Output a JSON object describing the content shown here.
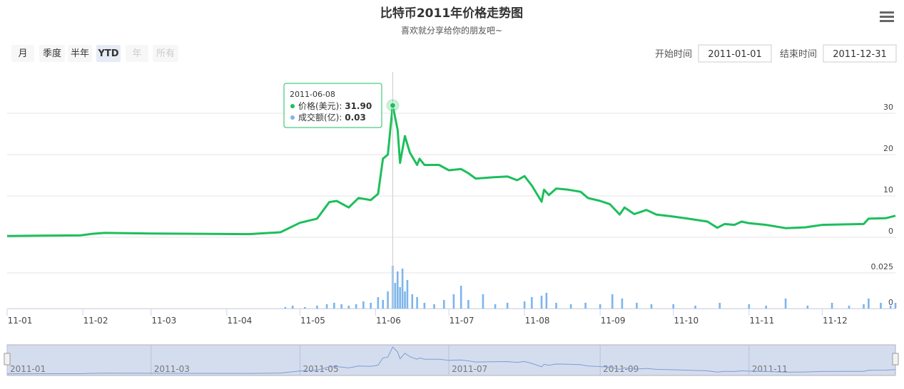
{
  "chart_data": [
    {
      "type": "line",
      "title": "比特币2011年价格走势图",
      "subtitle": "喜欢就分享给你的朋友吧~",
      "x": [
        "2011-01-01",
        "2011-01-15",
        "2011-01-31",
        "2011-02-05",
        "2011-02-10",
        "2011-03-01",
        "2011-03-20",
        "2011-04-10",
        "2011-04-23",
        "2011-05-01",
        "2011-05-08",
        "2011-05-13",
        "2011-05-16",
        "2011-05-21",
        "2011-05-25",
        "2011-05-30",
        "2011-06-02",
        "2011-06-04",
        "2011-06-06",
        "2011-06-08",
        "2011-06-10",
        "2011-06-11",
        "2011-06-13",
        "2011-06-15",
        "2011-06-18",
        "2011-06-19",
        "2011-06-21",
        "2011-06-27",
        "2011-07-01",
        "2011-07-06",
        "2011-07-09",
        "2011-07-12",
        "2011-07-19",
        "2011-07-25",
        "2011-07-29",
        "2011-08-01",
        "2011-08-04",
        "2011-08-08",
        "2011-08-09",
        "2011-08-11",
        "2011-08-14",
        "2011-08-19",
        "2011-08-24",
        "2011-08-27",
        "2011-09-01",
        "2011-09-05",
        "2011-09-09",
        "2011-09-11",
        "2011-09-15",
        "2011-09-20",
        "2011-09-24",
        "2011-10-01",
        "2011-10-07",
        "2011-10-15",
        "2011-10-19",
        "2011-10-22",
        "2011-10-26",
        "2011-10-29",
        "2011-11-01",
        "2011-11-08",
        "2011-11-16",
        "2011-11-24",
        "2011-12-01",
        "2011-12-09",
        "2011-12-18",
        "2011-12-20",
        "2011-12-27",
        "2011-12-31"
      ],
      "series": [
        {
          "name": "价格(美元)",
          "color": "#1cbf5b",
          "values": [
            0.3,
            0.4,
            0.45,
            0.85,
            1.05,
            0.9,
            0.85,
            0.75,
            1.2,
            3.5,
            4.5,
            8.5,
            8.8,
            7.2,
            9.5,
            9.0,
            10.5,
            19.0,
            20.0,
            31.9,
            26.0,
            18.0,
            24.5,
            20.5,
            17.5,
            19.0,
            17.5,
            17.5,
            16.2,
            16.5,
            15.5,
            14.2,
            14.5,
            14.7,
            13.8,
            14.8,
            12.5,
            8.6,
            11.5,
            10.2,
            11.8,
            11.5,
            11.0,
            9.5,
            8.8,
            8.0,
            5.5,
            7.2,
            5.6,
            6.6,
            5.5,
            5.0,
            4.5,
            3.8,
            2.3,
            3.2,
            3.0,
            3.8,
            3.4,
            3.0,
            2.2,
            2.4,
            3.0,
            3.1,
            3.2,
            4.5,
            4.6,
            5.2
          ]
        }
      ],
      "xlim": [
        "2011-01-01",
        "2011-12-31"
      ],
      "xticks": [
        {
          "value": "2011-01-01",
          "label": "11-01"
        },
        {
          "value": "2011-02-01",
          "label": "11-02"
        },
        {
          "value": "2011-03-01",
          "label": "11-03"
        },
        {
          "value": "2011-04-01",
          "label": "11-04"
        },
        {
          "value": "2011-05-01",
          "label": "11-05"
        },
        {
          "value": "2011-06-01",
          "label": "11-06"
        },
        {
          "value": "2011-07-01",
          "label": "11-07"
        },
        {
          "value": "2011-08-01",
          "label": "11-08"
        },
        {
          "value": "2011-09-01",
          "label": "11-09"
        },
        {
          "value": "2011-10-01",
          "label": "11-10"
        },
        {
          "value": "2011-11-01",
          "label": "11-11"
        },
        {
          "value": "2011-12-01",
          "label": "11-12"
        }
      ],
      "ylim": [
        0,
        40
      ],
      "yticks": [
        0,
        10,
        20,
        30
      ],
      "grid": true
    },
    {
      "type": "bar",
      "x": [
        "2011-04-25",
        "2011-04-28",
        "2011-05-03",
        "2011-05-08",
        "2011-05-12",
        "2011-05-15",
        "2011-05-18",
        "2011-05-21",
        "2011-05-24",
        "2011-05-27",
        "2011-05-30",
        "2011-06-02",
        "2011-06-04",
        "2011-06-06",
        "2011-06-08",
        "2011-06-09",
        "2011-06-10",
        "2011-06-11",
        "2011-06-12",
        "2011-06-13",
        "2011-06-14",
        "2011-06-16",
        "2011-06-18",
        "2011-06-21",
        "2011-06-25",
        "2011-06-29",
        "2011-07-03",
        "2011-07-06",
        "2011-07-09",
        "2011-07-15",
        "2011-07-20",
        "2011-07-25",
        "2011-08-01",
        "2011-08-04",
        "2011-08-08",
        "2011-08-10",
        "2011-08-14",
        "2011-08-20",
        "2011-08-26",
        "2011-09-01",
        "2011-09-06",
        "2011-09-10",
        "2011-09-16",
        "2011-09-22",
        "2011-10-01",
        "2011-10-10",
        "2011-10-20",
        "2011-11-01",
        "2011-11-08",
        "2011-11-16",
        "2011-11-25",
        "2011-12-05",
        "2011-12-12",
        "2011-12-18",
        "2011-12-20",
        "2011-12-25",
        "2011-12-29",
        "2011-12-31"
      ],
      "series": [
        {
          "name": "成交额(亿)",
          "color": "#7cb5ec",
          "values": [
            0.001,
            0.002,
            0.001,
            0.002,
            0.003,
            0.004,
            0.003,
            0.002,
            0.003,
            0.005,
            0.004,
            0.008,
            0.006,
            0.012,
            0.03,
            0.018,
            0.026,
            0.015,
            0.028,
            0.012,
            0.02,
            0.01,
            0.008,
            0.004,
            0.003,
            0.006,
            0.01,
            0.016,
            0.006,
            0.01,
            0.003,
            0.004,
            0.005,
            0.008,
            0.009,
            0.011,
            0.004,
            0.003,
            0.004,
            0.003,
            0.01,
            0.007,
            0.004,
            0.003,
            0.003,
            0.002,
            0.004,
            0.003,
            0.002,
            0.007,
            0.002,
            0.004,
            0.002,
            0.003,
            0.007,
            0.004,
            0.002,
            0.004
          ]
        }
      ],
      "xlim": [
        "2011-01-01",
        "2011-12-31"
      ],
      "ylim": [
        0,
        0.045
      ],
      "yticks": [
        0,
        0.025
      ]
    }
  ],
  "range_selector": {
    "buttons": [
      {
        "label": "月"
      },
      {
        "label": "季度"
      },
      {
        "label": "半年"
      },
      {
        "label": "YTD",
        "selected": true
      },
      {
        "label": "年",
        "disabled": true
      },
      {
        "label": "所有",
        "disabled": true
      }
    ]
  },
  "date_inputs": {
    "start_label": "开始时间",
    "start": "2011-01-01",
    "end_label": "结束时间",
    "end": "2011-12-31"
  },
  "tooltip": {
    "x": "2011-06-08",
    "value_labels": [
      "31.90",
      "0.03"
    ]
  },
  "navigator": {
    "xticks": [
      {
        "value": "2011-01-01",
        "label": "2011-01"
      },
      {
        "value": "2011-03-01",
        "label": "2011-03"
      },
      {
        "value": "2011-05-01",
        "label": "2011-05"
      },
      {
        "value": "2011-07-01",
        "label": "2011-07"
      },
      {
        "value": "2011-09-01",
        "label": "2011-09"
      },
      {
        "value": "2011-11-01",
        "label": "2011-11"
      }
    ]
  }
}
